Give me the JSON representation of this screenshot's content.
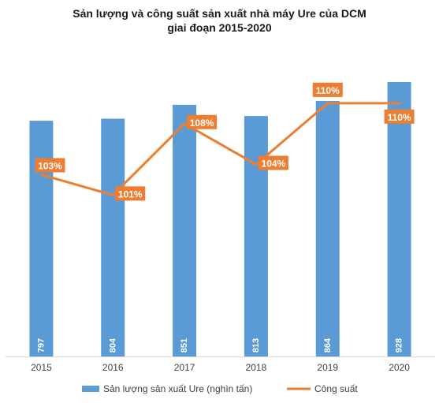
{
  "chart_data": {
    "type": "bar",
    "title_lines": [
      "Sản lượng và công suất sản xuất nhà máy Ure của DCM",
      "giai đoạn 2015-2020"
    ],
    "categories": [
      "2015",
      "2016",
      "2017",
      "2018",
      "2019",
      "2020"
    ],
    "series": [
      {
        "name": "Sản lượng sản xuất Ure (nghìn tấn)",
        "kind": "bar",
        "axis": "left",
        "color": "#5b9bd5",
        "values": [
          797,
          804,
          851,
          813,
          864,
          928
        ],
        "labels": [
          "797",
          "804",
          "851",
          "813",
          "864",
          "928"
        ]
      },
      {
        "name": "Công suất",
        "kind": "line",
        "axis": "right",
        "color": "#ed7d31",
        "values": [
          103,
          101,
          108,
          104,
          110,
          110
        ],
        "labels": [
          "103%",
          "101%",
          "108%",
          "104%",
          "110%",
          "110%"
        ]
      }
    ],
    "y_left_range": [
      0,
      1000
    ],
    "y_right_range": [
      95,
      112
    ],
    "grid": false,
    "legend_position": "bottom"
  }
}
